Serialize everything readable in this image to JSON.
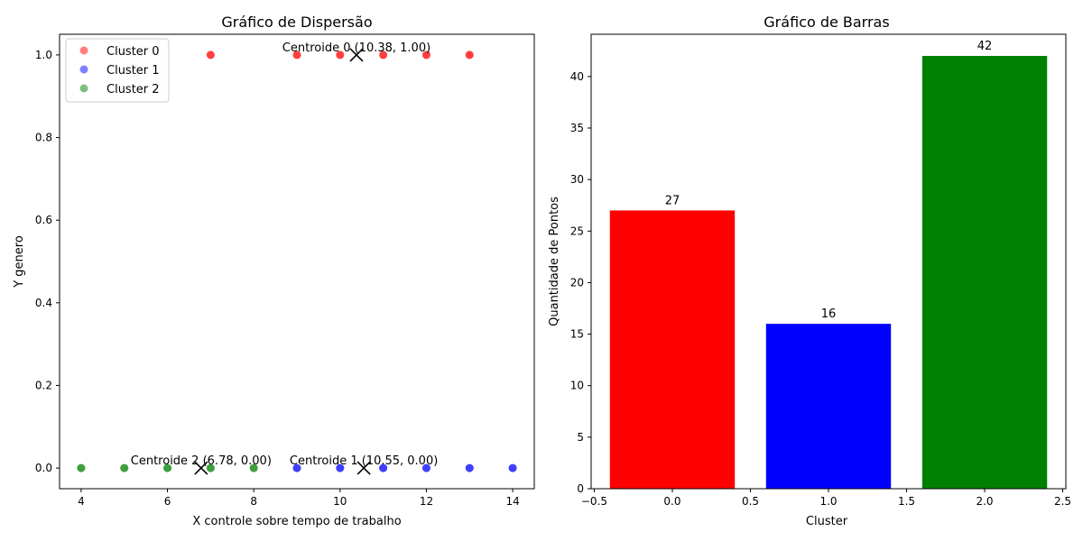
{
  "chart_data": [
    {
      "type": "scatter",
      "title": "Gráfico de Dispersão",
      "xlabel": "X controle sobre tempo de trabalho",
      "ylabel": "Y genero",
      "xlim": [
        3.5,
        14.5
      ],
      "ylim": [
        -0.05,
        1.05
      ],
      "xticks": [
        "4",
        "6",
        "8",
        "10",
        "12",
        "14"
      ],
      "yticks": [
        "0.0",
        "0.2",
        "0.4",
        "0.6",
        "0.8",
        "1.0"
      ],
      "legend_position": "upper-left",
      "grid": false,
      "series": [
        {
          "name": "Cluster 0",
          "color": "#ff0000",
          "points": [
            [
              7,
              1
            ],
            [
              9,
              1
            ],
            [
              10,
              1
            ],
            [
              11,
              1
            ],
            [
              12,
              1
            ],
            [
              13,
              1
            ]
          ]
        },
        {
          "name": "Cluster 1",
          "color": "#0000ff",
          "points": [
            [
              9,
              0
            ],
            [
              10,
              0
            ],
            [
              11,
              0
            ],
            [
              12,
              0
            ],
            [
              13,
              0
            ],
            [
              14,
              0
            ]
          ]
        },
        {
          "name": "Cluster 2",
          "color": "#008000",
          "points": [
            [
              4,
              0
            ],
            [
              5,
              0
            ],
            [
              6,
              0
            ],
            [
              7,
              0
            ],
            [
              8,
              0
            ]
          ]
        }
      ],
      "centroids": [
        {
          "label": "Centroide 0 (10.38, 1.00)",
          "x": 10.38,
          "y": 1.0
        },
        {
          "label": "Centroide 1 (10.55, 0.00)",
          "x": 10.55,
          "y": 0.0
        },
        {
          "label": "Centroide 2 (6.78, 0.00)",
          "x": 6.78,
          "y": 0.0
        }
      ]
    },
    {
      "type": "bar",
      "title": "Gráfico de Barras",
      "xlabel": "Cluster",
      "ylabel": "Quantidade de Pontos",
      "xlim": [
        -0.52,
        2.52
      ],
      "ylim": [
        0,
        44.1
      ],
      "xticks": [
        "−0.5",
        "0.0",
        "0.5",
        "1.0",
        "1.5",
        "2.0",
        "2.5"
      ],
      "yticks": [
        "0",
        "5",
        "10",
        "15",
        "20",
        "25",
        "30",
        "35",
        "40"
      ],
      "grid": false,
      "bars": [
        {
          "x": 0,
          "value": 27,
          "label": "27",
          "color": "#ff0000"
        },
        {
          "x": 1,
          "value": 16,
          "label": "16",
          "color": "#0000ff"
        },
        {
          "x": 2,
          "value": 42,
          "label": "42",
          "color": "#008000"
        }
      ]
    }
  ]
}
